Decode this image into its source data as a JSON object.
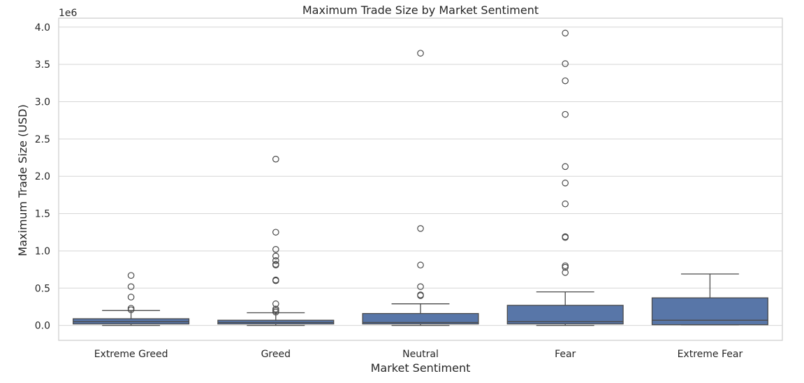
{
  "chart_data": {
    "type": "box",
    "title": "Maximum Trade Size by Market Sentiment",
    "xlabel": "Market Sentiment",
    "ylabel": "Maximum Trade Size (USD)",
    "y_offset_label": "1e6",
    "ylim": [
      -0.2,
      4.12
    ],
    "y_ticks": [
      0.0,
      0.5,
      1.0,
      1.5,
      2.0,
      2.5,
      3.0,
      3.5,
      4.0
    ],
    "y_tick_labels": [
      "0.0",
      "0.5",
      "1.0",
      "1.5",
      "2.0",
      "2.5",
      "3.0",
      "3.5",
      "4.0"
    ],
    "grid": true,
    "box_color": "#5876a8",
    "line_color": "#4a4a4a",
    "categories": [
      "Extreme Greed",
      "Greed",
      "Neutral",
      "Fear",
      "Extreme Fear"
    ],
    "boxes": [
      {
        "category": "Extreme Greed",
        "whisker_low": 0.0,
        "q1": 0.02,
        "median": 0.05,
        "q3": 0.09,
        "whisker_high": 0.2,
        "outliers": [
          0.67,
          0.52,
          0.38,
          0.23,
          0.21
        ]
      },
      {
        "category": "Greed",
        "whisker_low": 0.0,
        "q1": 0.02,
        "median": 0.04,
        "q3": 0.07,
        "whisker_high": 0.17,
        "outliers": [
          2.23,
          1.25,
          1.02,
          0.93,
          0.87,
          0.82,
          0.81,
          0.61,
          0.6,
          0.29,
          0.22,
          0.2,
          0.18
        ]
      },
      {
        "category": "Neutral",
        "whisker_low": 0.0,
        "q1": 0.02,
        "median": 0.04,
        "q3": 0.16,
        "whisker_high": 0.29,
        "outliers": [
          3.65,
          1.3,
          0.81,
          0.52,
          0.41,
          0.4
        ]
      },
      {
        "category": "Fear",
        "whisker_low": 0.0,
        "q1": 0.02,
        "median": 0.05,
        "q3": 0.27,
        "whisker_high": 0.45,
        "outliers": [
          3.92,
          3.51,
          3.28,
          2.83,
          2.13,
          1.91,
          1.63,
          1.19,
          1.18,
          0.8,
          0.78,
          0.71
        ]
      },
      {
        "category": "Extreme Fear",
        "whisker_low": 0.01,
        "q1": 0.01,
        "median": 0.07,
        "q3": 0.37,
        "whisker_high": 0.69,
        "outliers": []
      }
    ]
  }
}
